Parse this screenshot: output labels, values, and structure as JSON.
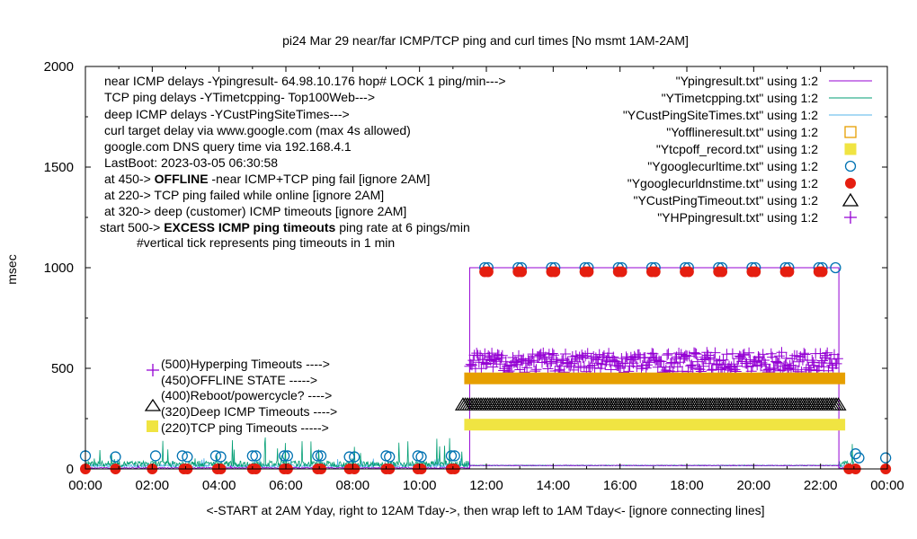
{
  "chart_data": {
    "type": "scatter",
    "title": "pi24 Mar 29  near/far ICMP/TCP ping and curl times [No msmt 1AM-2AM]",
    "xlabel": "<-START at 2AM Yday, right to 12AM Tday->, then wrap left to 1AM Tday<- [ignore connecting lines]",
    "ylabel": "msec",
    "xlim": [
      0,
      24
    ],
    "ylim": [
      0,
      2000
    ],
    "x_ticks": [
      "00:00",
      "02:00",
      "04:00",
      "06:00",
      "08:00",
      "10:00",
      "12:00",
      "14:00",
      "16:00",
      "18:00",
      "20:00",
      "22:00",
      "00:00"
    ],
    "y_ticks": [
      "0",
      "500",
      "1000",
      "1500",
      "2000"
    ],
    "grid": false,
    "legend_position": "top-right",
    "legend": [
      {
        "label": "\"Ypingresult.txt\" using 1:2",
        "marker": "line",
        "color": "#9400d3"
      },
      {
        "label": "\"YTimetcpping.txt\" using 1:2",
        "marker": "line",
        "color": "#009e73"
      },
      {
        "label": "\"YCustPingSiteTimes.txt\" using 1:2",
        "marker": "line",
        "color": "#56b4e9"
      },
      {
        "label": "\"Yofflineresult.txt\" using 1:2",
        "marker": "open-square",
        "color": "#e69f00"
      },
      {
        "label": "\"Ytcpoff_record.txt\" using 1:2",
        "marker": "filled-square",
        "color": "#f0e442"
      },
      {
        "label": "\"Ygooglecurltime.txt\" using 1:2",
        "marker": "open-circle",
        "color": "#0072b2"
      },
      {
        "label": "\"Ygooglecurldnstime.txt\" using 1:2",
        "marker": "filled-circle",
        "color": "#e51e10"
      },
      {
        "label": "\"YCustPingTimeout.txt\" using 1:2",
        "marker": "open-triangle",
        "color": "#000000"
      },
      {
        "label": "\"YHPpingresult.txt\" using 1:2",
        "marker": "plus",
        "color": "#9400d3"
      }
    ],
    "annotations": [
      "near ICMP delays -Ypingresult- 64.98.10.176 hop# LOCK 1 ping/min--->",
      "TCP ping delays -YTimetcpping- Top100Web--->",
      "deep ICMP delays -YCustPingSiteTimes--->",
      "curl target delay via www.google.com (max 4s allowed)",
      "google.com DNS query time via 192.168.4.1",
      "LastBoot: 2023-03-05 06:30:58"
    ],
    "annotation_offline": {
      "prefix": "at 450-> ",
      "bold": "OFFLINE",
      "suffix": " -near ICMP+TCP ping fail [ignore 2AM]"
    },
    "annotations_2": [
      "at 220-> TCP ping failed while online [ignore 2AM]",
      "at 320-> deep (customer) ICMP timeouts [ignore 2AM]"
    ],
    "annotation_excess": {
      "prefix": "start 500-> ",
      "bold": "EXCESS ICMP ping timeouts",
      "suffix": " ping rate at 6 pings/min"
    },
    "annotation_tick": "#vertical tick represents ping timeouts in 1 min",
    "key_labels": [
      "(500)Hyperping Timeouts ---->",
      "(450)OFFLINE STATE ----->",
      "(400)Reboot/powercycle? ---->",
      "(320)Deep ICMP Timeouts ---->",
      "(220)TCP ping Timeouts ----->"
    ],
    "outage": {
      "start": 11.5,
      "end": 22.55,
      "box_value": 1000
    },
    "series": [
      {
        "name": "\"Ygooglecurltime.txt\" using 1:2",
        "kind": "open-circle",
        "color": "#0072b2",
        "x": [
          0.0,
          0.9,
          2.1,
          2.9,
          3.05,
          3.9,
          4.05,
          5.0,
          5.1,
          5.95,
          6.05,
          6.95,
          7.05,
          7.9,
          8.05,
          9.0,
          9.1,
          9.95,
          10.05,
          10.95,
          11.05,
          11.95,
          12.05,
          12.95,
          13.05,
          13.95,
          14.05,
          14.95,
          15.05,
          15.95,
          16.05,
          16.95,
          17.05,
          17.95,
          18.05,
          18.95,
          19.05,
          19.95,
          20.05,
          20.95,
          21.05,
          21.95,
          22.05,
          22.45,
          23.05,
          23.15,
          23.95
        ],
        "y": [
          65,
          60,
          65,
          65,
          60,
          65,
          60,
          65,
          65,
          65,
          65,
          65,
          65,
          60,
          60,
          65,
          60,
          65,
          60,
          65,
          65,
          1000,
          1000,
          1000,
          1000,
          1000,
          1000,
          1000,
          1000,
          1000,
          1000,
          1000,
          1000,
          1000,
          1000,
          1000,
          1000,
          1000,
          1000,
          1000,
          1000,
          1000,
          1000,
          1000,
          75,
          55,
          55
        ]
      },
      {
        "name": "\"Ygooglecurldnstime.txt\" using 1:2",
        "kind": "filled-circle",
        "color": "#e51e10",
        "x": [
          0.0,
          0.9,
          2.0,
          2.95,
          3.05,
          3.95,
          4.05,
          5.0,
          5.1,
          5.95,
          6.05,
          6.95,
          7.05,
          7.9,
          8.05,
          9.0,
          9.1,
          9.95,
          10.05,
          10.95,
          11.05,
          11.95,
          12.05,
          12.95,
          13.05,
          13.95,
          14.05,
          14.95,
          15.05,
          15.95,
          16.05,
          16.95,
          17.05,
          17.95,
          18.05,
          18.95,
          19.05,
          19.95,
          20.05,
          20.95,
          21.05,
          21.95,
          22.05,
          22.85,
          23.05,
          23.95
        ],
        "y": [
          0,
          0,
          0,
          0,
          0,
          0,
          0,
          0,
          0,
          0,
          0,
          0,
          0,
          0,
          0,
          0,
          0,
          0,
          0,
          0,
          0,
          980,
          980,
          980,
          980,
          980,
          980,
          980,
          980,
          980,
          980,
          980,
          980,
          980,
          980,
          980,
          980,
          980,
          980,
          980,
          980,
          980,
          980,
          0,
          0,
          0
        ]
      },
      {
        "name": "\"YHPpingresult.txt\" using 1:2",
        "kind": "plus-band",
        "color": "#9400d3",
        "x": [
          11.5,
          22.55
        ],
        "y": [
          480,
          580
        ]
      },
      {
        "name": "\"Yofflineresult.txt\" using 1:2",
        "kind": "band",
        "color": "#e69f00",
        "x": [
          11.5,
          22.55
        ],
        "y": [
          450,
          450
        ]
      },
      {
        "name": "\"YCustPingTimeout.txt\" using 1:2",
        "kind": "triangle-band",
        "color": "#000000",
        "x": [
          11.3,
          22.55
        ],
        "y": [
          320,
          320
        ]
      },
      {
        "name": "\"Ytcpoff_record.txt\" using 1:2",
        "kind": "band",
        "color": "#f0e442",
        "x": [
          11.5,
          22.55
        ],
        "y": [
          220,
          220
        ]
      }
    ]
  }
}
